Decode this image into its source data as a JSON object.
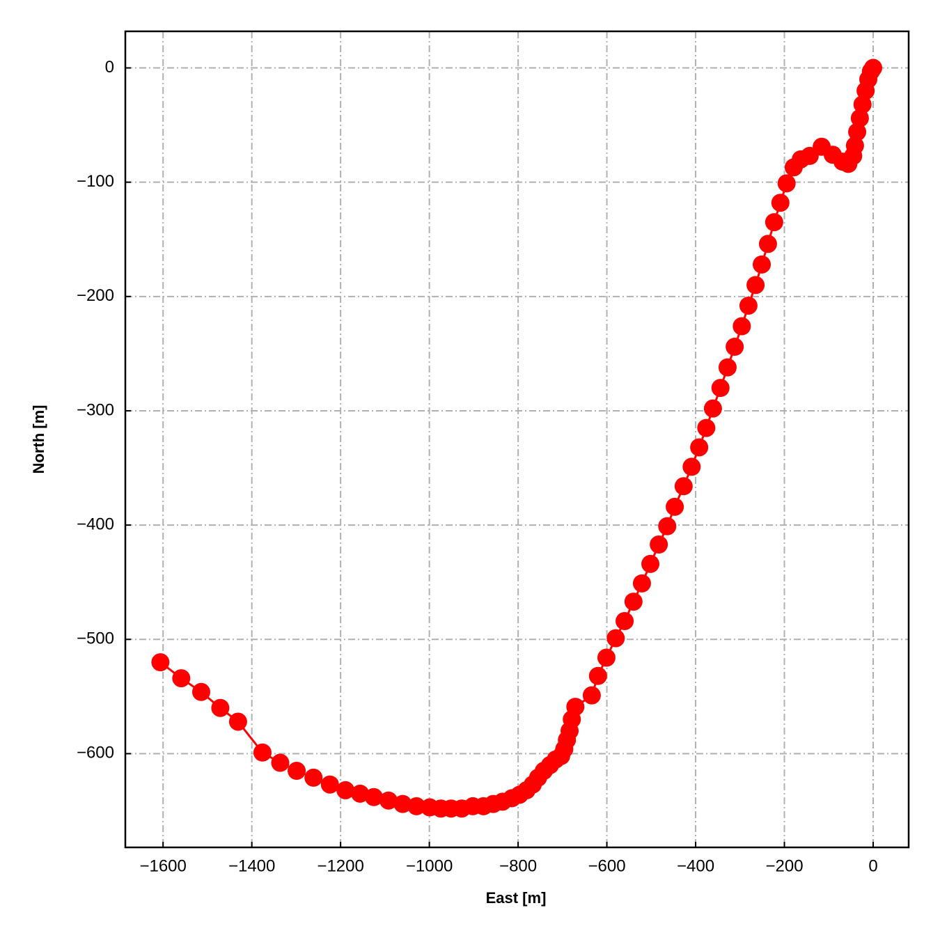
{
  "chart_data": {
    "type": "line",
    "xlabel": "East [m]",
    "ylabel": "North [m]",
    "x": [
      -1606,
      -1559,
      -1514,
      -1471,
      -1431,
      -1376,
      -1336,
      -1299,
      -1261,
      -1224,
      -1189,
      -1156,
      -1125,
      -1092,
      -1060,
      -1029,
      -999,
      -974,
      -951,
      -927,
      -902,
      -878,
      -856,
      -835,
      -814,
      -797,
      -781,
      -767,
      -755,
      -742,
      -728,
      -715,
      -703,
      -696,
      -690,
      -684,
      -679,
      -671,
      -634,
      -620,
      -601,
      -580,
      -560,
      -540,
      -521,
      -502,
      -483,
      -464,
      -447,
      -427,
      -409,
      -392,
      -376,
      -361,
      -344,
      -328,
      -312,
      -296,
      -281,
      -265,
      -251,
      -237,
      -223,
      -209,
      -195,
      -179,
      -163,
      -143,
      -116,
      -91,
      -69,
      -56,
      -45,
      -41,
      -36,
      -30,
      -24,
      -17,
      -11,
      -5,
      0
    ],
    "series": [
      {
        "color": "#ff0000",
        "values": [
          -520,
          -534,
          -546,
          -560,
          -572,
          -599,
          -608,
          -615,
          -621,
          -627,
          -632,
          -635,
          -638,
          -641,
          -644,
          -646,
          -647,
          -648,
          -648,
          -648,
          -646,
          -646,
          -644,
          -642,
          -639,
          -636,
          -632,
          -627,
          -621,
          -615,
          -610,
          -605,
          -602,
          -596,
          -588,
          -580,
          -570,
          -559,
          -549,
          -532,
          -516,
          -499,
          -484,
          -467,
          -451,
          -434,
          -417,
          -401,
          -384,
          -366,
          -349,
          -332,
          -315,
          -298,
          -280,
          -262,
          -244,
          -226,
          -208,
          -190,
          -172,
          -154,
          -135,
          -118,
          -101,
          -87,
          -80,
          -77,
          -69,
          -76,
          -82,
          -84,
          -77,
          -68,
          -56,
          -44,
          -32,
          -20,
          -10,
          -3,
          0
        ]
      }
    ],
    "xlim": [
      -1685,
      80
    ],
    "ylim": [
      -682,
      32
    ],
    "xticks": [
      {
        "value": -1600,
        "label": "−1600"
      },
      {
        "value": -1400,
        "label": "−1400"
      },
      {
        "value": -1200,
        "label": "−1200"
      },
      {
        "value": -1000,
        "label": "−1000"
      },
      {
        "value": -800,
        "label": "−800"
      },
      {
        "value": -600,
        "label": "−600"
      },
      {
        "value": -400,
        "label": "−400"
      },
      {
        "value": -200,
        "label": "−200"
      },
      0
    ],
    "yticks": [
      0,
      {
        "value": -100,
        "label": "−100"
      },
      {
        "value": -200,
        "label": "−200"
      },
      {
        "value": -300,
        "label": "−300"
      },
      {
        "value": -400,
        "label": "−400"
      },
      {
        "value": -500,
        "label": "−500"
      },
      {
        "value": -600,
        "label": "−600"
      }
    ],
    "grid": true
  }
}
